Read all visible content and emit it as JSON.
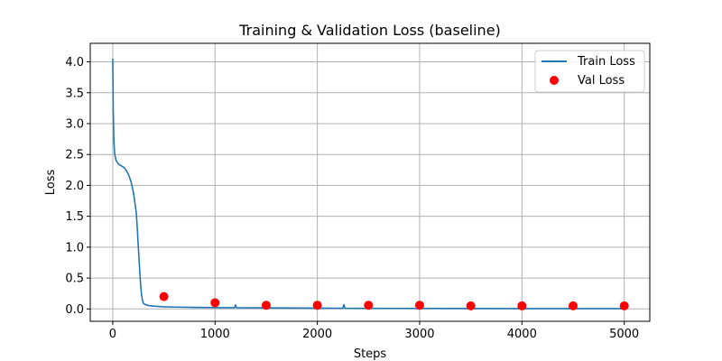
{
  "chart_data": {
    "type": "line",
    "title": "Training & Validation Loss (baseline)",
    "xlabel": "Steps",
    "ylabel": "Loss",
    "xlim": [
      -220,
      5250
    ],
    "ylim": [
      -0.2,
      4.3
    ],
    "xticks": [
      0,
      1000,
      2000,
      3000,
      4000,
      5000
    ],
    "yticks": [
      0.0,
      0.5,
      1.0,
      1.5,
      2.0,
      2.5,
      3.0,
      3.5,
      4.0
    ],
    "xtick_labels": [
      "0",
      "1000",
      "2000",
      "3000",
      "4000",
      "5000"
    ],
    "ytick_labels": [
      "0.0",
      "0.5",
      "1.0",
      "1.5",
      "2.0",
      "2.5",
      "3.0",
      "3.5",
      "4.0"
    ],
    "grid": true,
    "legend_position": "top-right",
    "series": [
      {
        "name": "Train Loss",
        "kind": "line",
        "color": "#1f77b4",
        "x": [
          0,
          5,
          10,
          15,
          20,
          30,
          40,
          50,
          60,
          80,
          100,
          120,
          140,
          160,
          180,
          200,
          210,
          220,
          230,
          240,
          250,
          260,
          270,
          280,
          290,
          300,
          320,
          350,
          400,
          500,
          600,
          800,
          1000,
          1190,
          1200,
          1210,
          1400,
          1600,
          2000,
          2250,
          2260,
          2270,
          2500,
          3000,
          3500,
          4000,
          4500,
          5000
        ],
        "y": [
          4.05,
          3.2,
          2.8,
          2.6,
          2.5,
          2.42,
          2.38,
          2.36,
          2.34,
          2.32,
          2.3,
          2.27,
          2.22,
          2.15,
          2.05,
          1.9,
          1.8,
          1.68,
          1.55,
          1.3,
          1.0,
          0.72,
          0.45,
          0.25,
          0.14,
          0.09,
          0.07,
          0.055,
          0.045,
          0.035,
          0.03,
          0.025,
          0.022,
          0.02,
          0.065,
          0.02,
          0.018,
          0.016,
          0.013,
          0.012,
          0.07,
          0.012,
          0.01,
          0.008,
          0.007,
          0.006,
          0.005,
          0.005
        ]
      },
      {
        "name": "Val Loss",
        "kind": "scatter",
        "color": "#ff0000",
        "x": [
          500,
          1000,
          1500,
          2000,
          2500,
          3000,
          3500,
          4000,
          4500,
          5000
        ],
        "y": [
          0.2,
          0.1,
          0.06,
          0.06,
          0.06,
          0.06,
          0.05,
          0.05,
          0.05,
          0.05
        ]
      }
    ]
  }
}
